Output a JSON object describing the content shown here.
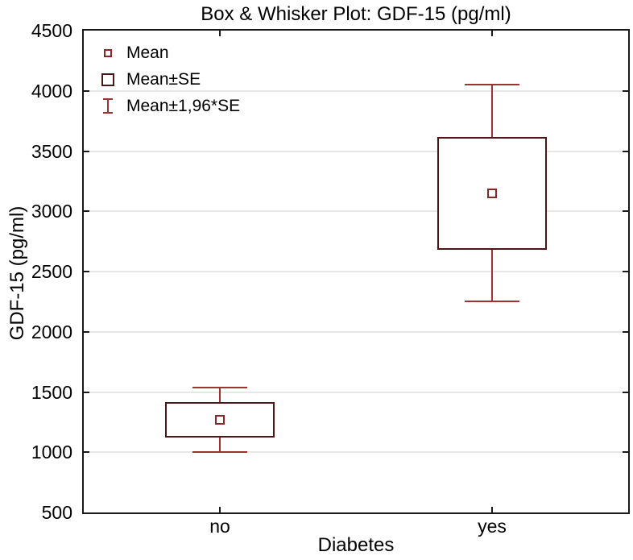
{
  "chart_data": {
    "type": "box",
    "title": "Box & Whisker Plot: GDF-15 (pg/ml)",
    "xlabel": "Diabetes",
    "ylabel": "GDF-15 (pg/ml)",
    "ylim": [
      500,
      4500
    ],
    "yticks": [
      4500,
      4000,
      3500,
      3000,
      2500,
      2000,
      1500,
      1000,
      500
    ],
    "categories": [
      "no",
      "yes"
    ],
    "grid": true,
    "legend_position": "top-left-inside",
    "legend": [
      {
        "marker": "mean-square-icon",
        "label": "Mean"
      },
      {
        "marker": "se-box-icon",
        "label": "Mean±SE"
      },
      {
        "marker": "whisker-icon",
        "label": "Mean±1,96*SE"
      }
    ],
    "series": [
      {
        "category": "no",
        "mean": 1270,
        "se_low": 1132,
        "se_high": 1408,
        "whisker_low": 1000,
        "whisker_high": 1540
      },
      {
        "category": "yes",
        "mean": 3150,
        "se_low": 2690,
        "se_high": 3610,
        "whisker_low": 2250,
        "whisker_high": 4050
      }
    ],
    "colors": {
      "frame": "#1a1a1a",
      "grid_line": "#e7e7e7",
      "box_border": "#4d1616",
      "whisker": "#9e3232",
      "mean_marker": "#8b2626",
      "text": "#000000",
      "background": "#ffffff"
    }
  }
}
